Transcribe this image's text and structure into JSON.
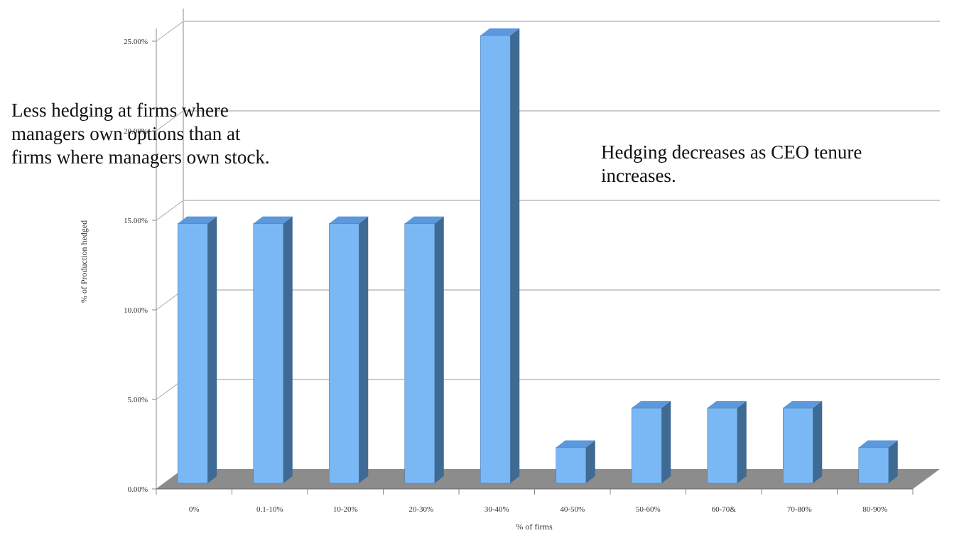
{
  "chart_data": {
    "type": "bar",
    "style": "3d-column",
    "categories": [
      "0%",
      "0.1-10%",
      "10-20%",
      "20-30%",
      "30-40%",
      "40-50%",
      "50-60%",
      "60-70&",
      "70-80%",
      "80-90%"
    ],
    "series": [
      {
        "values": [
          14.5,
          14.5,
          14.5,
          14.5,
          25.0,
          2.0,
          4.2,
          4.2,
          4.2,
          2.0
        ]
      }
    ],
    "xlabel": "% of firms",
    "ylabel": "% of Production hedged",
    "ylim": [
      0,
      25
    ],
    "yticks": [
      "0.00%",
      "5.00%",
      "10.00%",
      "15.00%",
      "20.00%",
      "25.00%"
    ],
    "ytick_values": [
      0,
      5,
      10,
      15,
      20,
      25
    ],
    "grid": true,
    "colors": {
      "bar_front": "#7ab8f5",
      "bar_side": "#3f6a94",
      "bar_top": "#5b98dc",
      "floor": "#8c8c8c",
      "grid": "#cccccc"
    }
  },
  "annotations": {
    "left_line1": "Less hedging at firms where",
    "left_line2": "managers own options than at",
    "left_line3": "firms where managers own stock.",
    "right_line1": "Hedging decreases as CEO tenure",
    "right_line2": "increases."
  }
}
